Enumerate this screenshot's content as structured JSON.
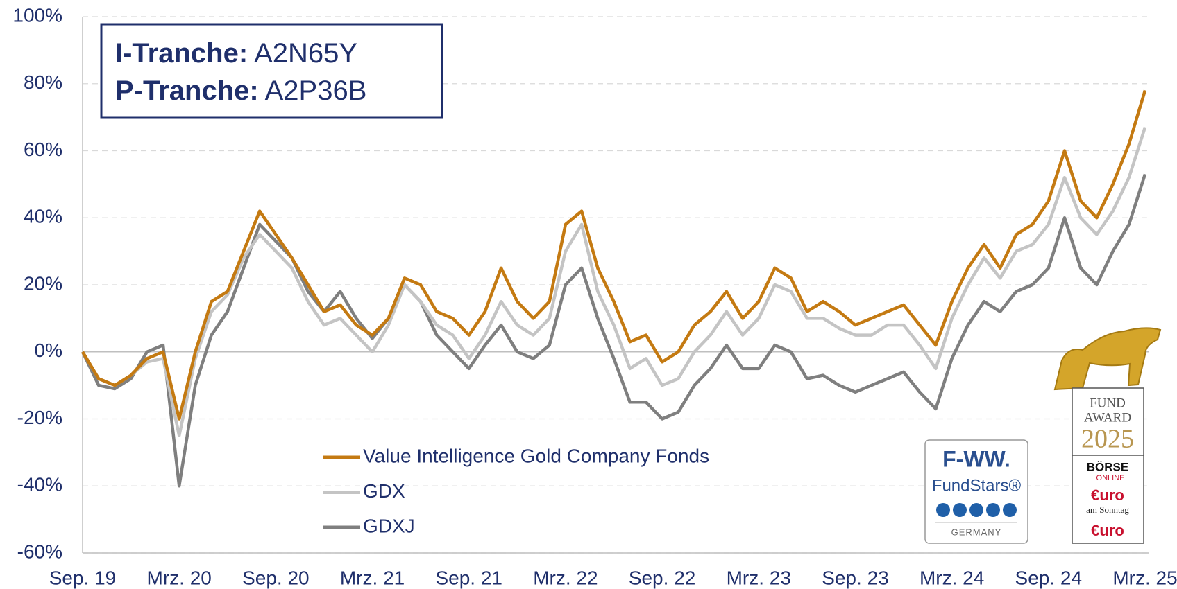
{
  "chart_data": {
    "type": "line",
    "categories": [
      "Sep. 19",
      null,
      null,
      null,
      null,
      null,
      "Mrz. 20",
      null,
      null,
      null,
      null,
      null,
      "Sep. 20",
      null,
      null,
      null,
      null,
      null,
      "Mrz. 21",
      null,
      null,
      null,
      null,
      null,
      "Sep. 21",
      null,
      null,
      null,
      null,
      null,
      "Mrz. 22",
      null,
      null,
      null,
      null,
      null,
      "Sep. 22",
      null,
      null,
      null,
      null,
      null,
      "Mrz. 23",
      null,
      null,
      null,
      null,
      null,
      "Sep. 23",
      null,
      null,
      null,
      null,
      null,
      "Mrz. 24",
      null,
      null,
      null,
      null,
      null,
      "Sep. 24",
      null,
      null,
      null,
      null,
      null,
      "Mrz. 25"
    ],
    "series": [
      {
        "name": "Value Intelligence Gold Company Fonds",
        "color": "#c47a12",
        "values": [
          0,
          -8,
          -10,
          -7,
          -2,
          0,
          -20,
          0,
          15,
          18,
          30,
          42,
          35,
          28,
          20,
          12,
          14,
          8,
          5,
          10,
          22,
          20,
          12,
          10,
          5,
          12,
          25,
          15,
          10,
          15,
          38,
          42,
          25,
          15,
          3,
          5,
          -3,
          0,
          8,
          12,
          18,
          10,
          15,
          25,
          22,
          12,
          15,
          12,
          8,
          10,
          12,
          14,
          8,
          2,
          15,
          25,
          32,
          25,
          35,
          38,
          45,
          60,
          45,
          40,
          50,
          62,
          78
        ]
      },
      {
        "name": "GDX",
        "color": "#c4c4c4",
        "values": [
          0,
          -8,
          -10,
          -7,
          -3,
          -2,
          -25,
          -2,
          12,
          17,
          28,
          35,
          30,
          25,
          15,
          8,
          10,
          5,
          0,
          8,
          20,
          15,
          8,
          5,
          -2,
          5,
          15,
          8,
          5,
          10,
          30,
          38,
          18,
          8,
          -5,
          -2,
          -10,
          -8,
          0,
          5,
          12,
          5,
          10,
          20,
          18,
          10,
          10,
          7,
          5,
          5,
          8,
          8,
          2,
          -5,
          10,
          20,
          28,
          22,
          30,
          32,
          38,
          52,
          40,
          35,
          42,
          52,
          67
        ]
      },
      {
        "name": "GDXJ",
        "color": "#7f7f7f",
        "values": [
          0,
          -10,
          -11,
          -8,
          0,
          2,
          -40,
          -10,
          5,
          12,
          25,
          38,
          33,
          28,
          18,
          12,
          18,
          10,
          4,
          10,
          20,
          15,
          5,
          0,
          -5,
          2,
          8,
          0,
          -2,
          2,
          20,
          25,
          10,
          -2,
          -15,
          -15,
          -20,
          -18,
          -10,
          -5,
          2,
          -5,
          -5,
          2,
          0,
          -8,
          -7,
          -10,
          -12,
          -10,
          -8,
          -6,
          -12,
          -17,
          -2,
          8,
          15,
          12,
          18,
          20,
          25,
          40,
          25,
          20,
          30,
          38,
          53
        ]
      }
    ],
    "ylim": [
      -60,
      100
    ],
    "yticks": [
      {
        "value": -60,
        "label": "-60%"
      },
      {
        "value": -40,
        "label": "-40%"
      },
      {
        "value": -20,
        "label": "-20%"
      },
      {
        "value": 0,
        "label": "0%"
      },
      {
        "value": 20,
        "label": "20%"
      },
      {
        "value": 40,
        "label": "40%"
      },
      {
        "value": 60,
        "label": "60%"
      },
      {
        "value": 80,
        "label": "80%"
      },
      {
        "value": 100,
        "label": "100%"
      }
    ],
    "grid": true,
    "annotations": [
      {
        "label": "I-Tranche:",
        "value": "A2N65Y"
      },
      {
        "label": "P-Tranche:",
        "value": "A2P36B"
      }
    ],
    "badges": {
      "fww": {
        "brand": "F-WW.",
        "name": "FundStars®",
        "country": "GERMANY"
      },
      "award": {
        "line1": "FUND",
        "line2": "AWARD",
        "year": "2025",
        "media1": "BÖRSE",
        "media1_sub": "ONLINE",
        "media2": "€uro",
        "media2_sub": "am Sonntag",
        "media3": "€uro"
      }
    }
  }
}
